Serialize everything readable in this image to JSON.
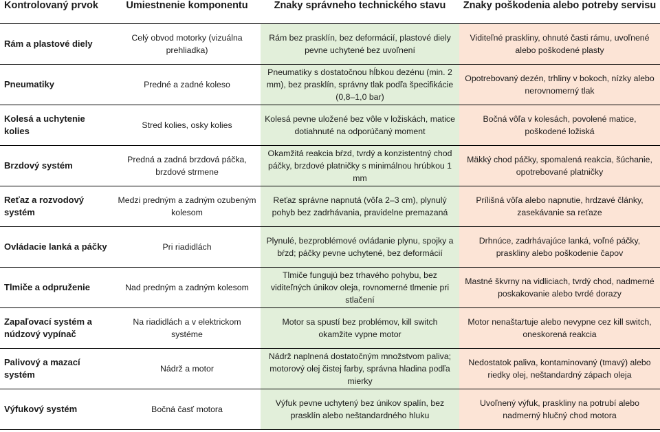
{
  "table": {
    "headers": [
      "Kontrolovaný prvok",
      "Umiestnenie komponentu",
      "Znaky správneho technického stavu",
      "Znaky poškodenia alebo potreby servisu"
    ],
    "rows": [
      {
        "prvok": "Rám a plastové diely",
        "umiestnenie": "Celý obvod motorky (vizuálna prehliadka)",
        "spravny": "Rám bez prasklín, bez deformácií, plastové diely pevne uchytené bez uvoľnení",
        "poskodenie": "Viditeľné praskliny, ohnuté časti rámu, uvoľnené alebo poškodené plasty"
      },
      {
        "prvok": "Pneumatiky",
        "umiestnenie": "Predné a zadné koleso",
        "spravny": "Pneumatiky s dostatočnou hĺbkou dezénu (min. 2 mm), bez prasklín, správny tlak podľa špecifikácie (0,8–1,0 bar)",
        "poskodenie": "Opotrebovaný dezén, trhliny v bokoch, nízky alebo nerovnomerný tlak"
      },
      {
        "prvok": "Kolesá a uchytenie kolies",
        "umiestnenie": "Stred kolies, osky kolies",
        "spravny": "Kolesá pevne uložené bez vôle v ložiskách, matice dotiahnuté na odporúčaný moment",
        "poskodenie": "Bočná vôľa v kolesách, povolené matice, poškodené ložiská"
      },
      {
        "prvok": "Brzdový systém",
        "umiestnenie": "Predná a zadná brzdová páčka, brzdové strmene",
        "spravny": "Okamžitá reakcia bŕzd, tvrdý a konzistentný chod páčky, brzdové platničky s minimálnou hrúbkou 1 mm",
        "poskodenie": "Mäkký chod páčky, spomalená reakcia, šúchanie, opotrebované platničky"
      },
      {
        "prvok": "Reťaz a rozvodový systém",
        "umiestnenie": "Medzi predným a zadným ozubeným kolesom",
        "spravny": "Reťaz správne napnutá (vôľa 2–3 cm), plynulý pohyb bez zadrhávania, pravidelne premazaná",
        "poskodenie": "Prílišná vôľa alebo napnutie, hrdzavé články, zasekávanie sa reťaze"
      },
      {
        "prvok": "Ovládacie lanká a páčky",
        "umiestnenie": "Pri riadidlách",
        "spravny": "Plynulé, bezproblémové ovládanie plynu, spojky a bŕzd; páčky pevne uchytené, bez deformácií",
        "poskodenie": "Drhnúce, zadrhávajúce lanká, voľné páčky, praskliny alebo poškodenie čapov"
      },
      {
        "prvok": "Tlmiče a odpruženie",
        "umiestnenie": "Nad predným a zadným kolesom",
        "spravny": "Tlmiče fungujú bez trhavého pohybu, bez viditeľných únikov oleja, rovnomerné tlmenie pri stlačení",
        "poskodenie": "Mastné škvrny na vidliciach, tvrdý chod, nadmerné poskakovanie alebo tvrdé dorazy"
      },
      {
        "prvok": "Zapaľovací systém a núdzový vypínač",
        "umiestnenie": "Na riadidlách a v elektrickom systéme",
        "spravny": "Motor sa spustí bez problémov, kill switch okamžite vypne motor",
        "poskodenie": "Motor nenaštartuje alebo nevypne cez kill switch, oneskorená reakcia"
      },
      {
        "prvok": "Palivový a mazací systém",
        "umiestnenie": "Nádrž a motor",
        "spravny": "Nádrž naplnená dostatočným množstvom paliva; motorový olej čistej farby, správna hladina podľa mierky",
        "poskodenie": "Nedostatok paliva, kontaminovaný (tmavý) alebo riedky olej, neštandardný zápach oleja"
      },
      {
        "prvok": "Výfukový systém",
        "umiestnenie": "Bočná časť motora",
        "spravny": "Výfuk pevne uchytený bez únikov spalín, bez prasklín alebo neštandardného hluku",
        "poskodenie": "Uvoľnený výfuk, praskliny na potrubí alebo nadmerný hlučný chod motora"
      }
    ],
    "colors": {
      "ok_cell": "#e2efda",
      "bad_cell": "#fce4d6"
    }
  }
}
